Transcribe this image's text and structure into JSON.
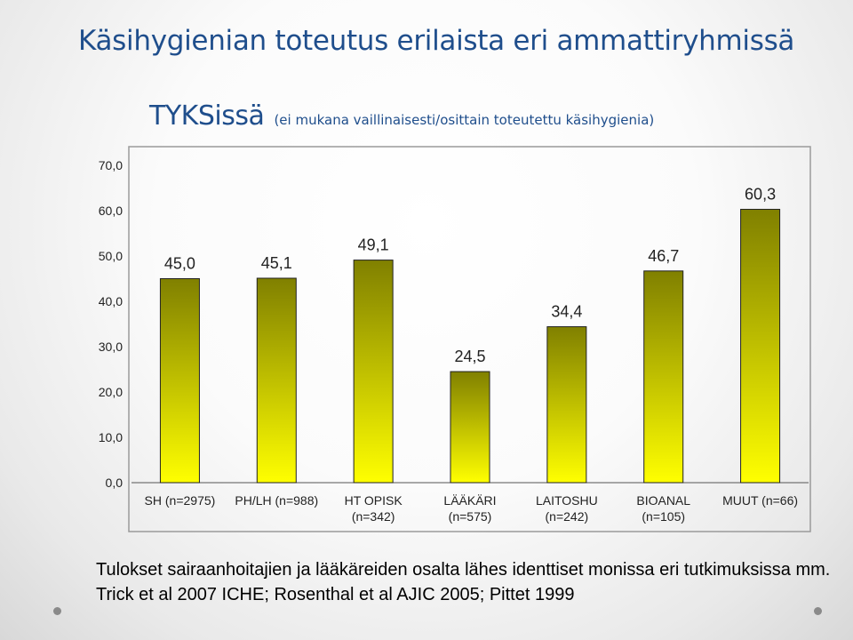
{
  "slide": {
    "title": "Käsihygienian toteutus erilaista eri ammattiryhmissä",
    "subtitle_main": "TYKSissä",
    "subtitle_note": "(ei mukana vaillinaisesti/osittain toteutettu käsihygienia)"
  },
  "footnotes": [
    "Tulokset sairaanhoitajien ja lääkäreiden osalta lähes identtiset monissa eri tutkimuksissa mm.",
    "Trick et al 2007 ICHE; Rosenthal et al  AJIC 2005; Pittet 1999"
  ],
  "chart_data": {
    "type": "bar",
    "title": "",
    "xlabel": "",
    "ylabel": "",
    "ylim": [
      0,
      70
    ],
    "yticks": [
      "0,0",
      "10,0",
      "20,0",
      "30,0",
      "40,0",
      "50,0",
      "60,0",
      "70,0"
    ],
    "grid": false,
    "legend": "none",
    "bar_color_top": "#808000",
    "bar_color_bottom": "#ffff00",
    "categories": [
      [
        "SH (n=2975)"
      ],
      [
        "PH/LH (n=988)"
      ],
      [
        "HT OPISK",
        "(n=342)"
      ],
      [
        "LÄÄKÄRI",
        "(n=575)"
      ],
      [
        "LAITOSHU",
        "(n=242)"
      ],
      [
        "BIOANAL",
        "(n=105)"
      ],
      [
        "MUUT (n=66)"
      ]
    ],
    "values": [
      45.0,
      45.1,
      49.1,
      24.5,
      34.4,
      46.7,
      60.3
    ],
    "data_labels": [
      "45,0",
      "45,1",
      "49,1",
      "24,5",
      "34,4",
      "46,7",
      "60,3"
    ]
  }
}
